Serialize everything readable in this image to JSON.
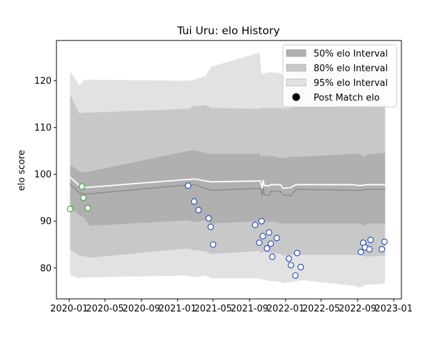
{
  "chart_data": {
    "type": "line",
    "title": "Tui Uru: elo History",
    "xlabel": "",
    "ylabel": "elo score",
    "xlim": [
      "2019-11-19",
      "2023-01-27"
    ],
    "ylim": [
      73.4,
      128.6
    ],
    "x_ticks": [
      "2020-01-01",
      "2020-05-01",
      "2020-09-01",
      "2021-01-01",
      "2021-05-01",
      "2021-09-01",
      "2022-01-01",
      "2022-05-01",
      "2022-09-01",
      "2023-01-01"
    ],
    "x_tick_labels": [
      "2020-01",
      "2020-05",
      "2020-09",
      "2021-01",
      "2021-05",
      "2021-09",
      "2022-01",
      "2022-05",
      "2022-09",
      "2023-01"
    ],
    "y_ticks": [
      80,
      90,
      100,
      110,
      120
    ],
    "grid": false,
    "legend_position": "top-right",
    "colors": {
      "band50": "#b0b0b0",
      "band80": "#c8c8c8",
      "band95": "#e2e2e2",
      "median_line": "#8c8c8c",
      "mean_line": "#ffffff",
      "point_edge_early": "#2ca02c",
      "point_edge_late": "#1f3fbf",
      "point_face": "#ffffff"
    },
    "legend": [
      {
        "label": "50% elo Interval",
        "kind": "patch",
        "color": "#b0b0b0"
      },
      {
        "label": "80% elo Interval",
        "kind": "patch",
        "color": "#c8c8c8"
      },
      {
        "label": "95% elo Interval",
        "kind": "patch",
        "color": "#e2e2e2"
      },
      {
        "label": "Post Match elo",
        "kind": "marker",
        "color": "#000000"
      }
    ],
    "series": [
      {
        "kind": "bands",
        "x": [
          "2020-01-04",
          "2020-02-05",
          "2020-02-20",
          "2020-03-10",
          "2021-02-05",
          "2021-02-25",
          "2021-04-05",
          "2021-04-25",
          "2021-10-05",
          "2021-10-12",
          "2021-10-15",
          "2021-10-20",
          "2021-11-08",
          "2021-11-15",
          "2021-12-15",
          "2021-12-22",
          "2022-01-20",
          "2022-02-01",
          "2022-03-01",
          "2022-08-20",
          "2022-09-10",
          "2022-09-20",
          "2022-10-01",
          "2022-11-20",
          "2022-12-03"
        ],
        "lo50": [
          93.0,
          91.2,
          90.8,
          89.0,
          90.2,
          89.8,
          90.2,
          89.5,
          90.0,
          89.2,
          90.0,
          90.0,
          89.8,
          90.0,
          89.5,
          89.5,
          89.5,
          89.5,
          89.5,
          89.5,
          89.5,
          89.0,
          89.5,
          89.5,
          89.5
        ],
        "hi50": [
          102.0,
          100.6,
          100.5,
          100.6,
          105.0,
          105.2,
          104.6,
          104.4,
          104.4,
          103.6,
          104.0,
          104.0,
          103.8,
          104.0,
          103.5,
          103.4,
          103.8,
          103.8,
          103.8,
          104.4,
          104.4,
          103.8,
          104.2,
          104.6,
          104.6
        ],
        "lo80": [
          84.0,
          82.6,
          82.6,
          82.2,
          84.2,
          83.8,
          83.6,
          83.0,
          83.6,
          83.0,
          83.4,
          83.4,
          83.2,
          83.2,
          83.0,
          82.6,
          82.8,
          82.8,
          82.8,
          82.8,
          82.8,
          82.6,
          82.4,
          82.6,
          82.6
        ],
        "hi80": [
          117.0,
          113.0,
          113.2,
          113.2,
          114.0,
          114.6,
          114.8,
          114.2,
          114.0,
          114.2,
          114.2,
          114.2,
          114.2,
          114.2,
          114.2,
          114.0,
          114.2,
          114.4,
          114.4,
          114.6,
          114.6,
          114.6,
          114.8,
          115.0,
          115.0
        ],
        "lo95": [
          78.5,
          77.8,
          78.0,
          78.0,
          78.4,
          78.0,
          78.4,
          77.8,
          77.8,
          77.4,
          77.6,
          77.6,
          77.2,
          77.2,
          77.0,
          76.8,
          77.0,
          77.2,
          77.4,
          76.2,
          75.8,
          76.2,
          76.4,
          76.6,
          76.8
        ],
        "hi95": [
          122.0,
          119.0,
          120.2,
          120.2,
          120.0,
          120.2,
          121.0,
          123.0,
          126.0,
          121.2,
          121.6,
          121.6,
          121.8,
          121.8,
          121.6,
          121.0,
          122.0,
          122.2,
          122.2,
          122.0,
          122.0,
          122.0,
          122.8,
          123.2,
          123.2
        ]
      },
      {
        "kind": "line",
        "role": "median",
        "x": [
          "2020-01-04",
          "2020-02-05",
          "2020-02-28",
          "2021-01-10",
          "2021-03-01",
          "2021-04-25",
          "2021-10-08",
          "2021-10-14",
          "2021-10-17",
          "2021-10-21",
          "2021-11-08",
          "2021-11-12",
          "2021-12-15",
          "2021-12-23",
          "2022-01-18",
          "2022-02-05",
          "2022-08-15",
          "2022-09-10",
          "2022-10-01",
          "2022-12-03"
        ],
        "y": [
          98.0,
          96.0,
          95.8,
          97.6,
          97.8,
          96.6,
          97.0,
          95.4,
          97.4,
          95.6,
          95.6,
          96.4,
          96.4,
          95.6,
          95.4,
          96.8,
          96.6,
          96.6,
          96.8,
          96.8
        ]
      },
      {
        "kind": "line",
        "role": "mean",
        "x": [
          "2020-01-04",
          "2020-02-05",
          "2020-02-28",
          "2021-01-10",
          "2021-03-01",
          "2021-04-25",
          "2021-10-08",
          "2021-10-14",
          "2021-10-17",
          "2021-10-21",
          "2021-11-08",
          "2021-11-12",
          "2021-12-15",
          "2021-12-23",
          "2022-01-18",
          "2022-02-05",
          "2022-08-15",
          "2022-09-10",
          "2022-10-01",
          "2022-12-03"
        ],
        "y": [
          99.4,
          97.6,
          97.2,
          98.8,
          99.0,
          98.4,
          98.6,
          97.0,
          98.8,
          97.6,
          97.6,
          97.8,
          97.8,
          97.0,
          97.2,
          97.8,
          97.8,
          97.6,
          97.8,
          97.8
        ]
      },
      {
        "kind": "scatter",
        "name": "Post Match elo",
        "points": [
          {
            "x": "2020-01-04",
            "y": 92.6,
            "group": "early"
          },
          {
            "x": "2020-02-13",
            "y": 97.4,
            "group": "early"
          },
          {
            "x": "2020-02-18",
            "y": 95.0,
            "group": "early"
          },
          {
            "x": "2020-03-04",
            "y": 92.8,
            "group": "early"
          },
          {
            "x": "2021-02-06",
            "y": 97.6,
            "group": "late"
          },
          {
            "x": "2021-02-26",
            "y": 94.2,
            "group": "late"
          },
          {
            "x": "2021-03-13",
            "y": 92.4,
            "group": "late"
          },
          {
            "x": "2021-04-16",
            "y": 90.6,
            "group": "late"
          },
          {
            "x": "2021-04-23",
            "y": 88.8,
            "group": "late"
          },
          {
            "x": "2021-05-01",
            "y": 85.0,
            "group": "late"
          },
          {
            "x": "2021-09-20",
            "y": 89.2,
            "group": "late"
          },
          {
            "x": "2021-10-04",
            "y": 85.4,
            "group": "late"
          },
          {
            "x": "2021-10-12",
            "y": 90.0,
            "group": "late"
          },
          {
            "x": "2021-10-16",
            "y": 86.8,
            "group": "late"
          },
          {
            "x": "2021-10-30",
            "y": 84.2,
            "group": "late"
          },
          {
            "x": "2021-11-06",
            "y": 87.6,
            "group": "late"
          },
          {
            "x": "2021-11-12",
            "y": 85.2,
            "group": "late"
          },
          {
            "x": "2021-11-17",
            "y": 82.4,
            "group": "late"
          },
          {
            "x": "2021-12-02",
            "y": 86.4,
            "group": "late"
          },
          {
            "x": "2022-01-12",
            "y": 82.0,
            "group": "late"
          },
          {
            "x": "2022-01-19",
            "y": 80.6,
            "group": "late"
          },
          {
            "x": "2022-02-03",
            "y": 78.4,
            "group": "late"
          },
          {
            "x": "2022-02-09",
            "y": 83.2,
            "group": "late"
          },
          {
            "x": "2022-02-21",
            "y": 80.2,
            "group": "late"
          },
          {
            "x": "2022-09-12",
            "y": 83.4,
            "group": "late"
          },
          {
            "x": "2022-09-20",
            "y": 85.4,
            "group": "late"
          },
          {
            "x": "2022-09-26",
            "y": 84.4,
            "group": "late"
          },
          {
            "x": "2022-10-11",
            "y": 84.0,
            "group": "late"
          },
          {
            "x": "2022-10-15",
            "y": 86.0,
            "group": "late"
          },
          {
            "x": "2022-11-22",
            "y": 84.0,
            "group": "late"
          },
          {
            "x": "2022-12-01",
            "y": 85.6,
            "group": "late"
          }
        ]
      }
    ]
  }
}
